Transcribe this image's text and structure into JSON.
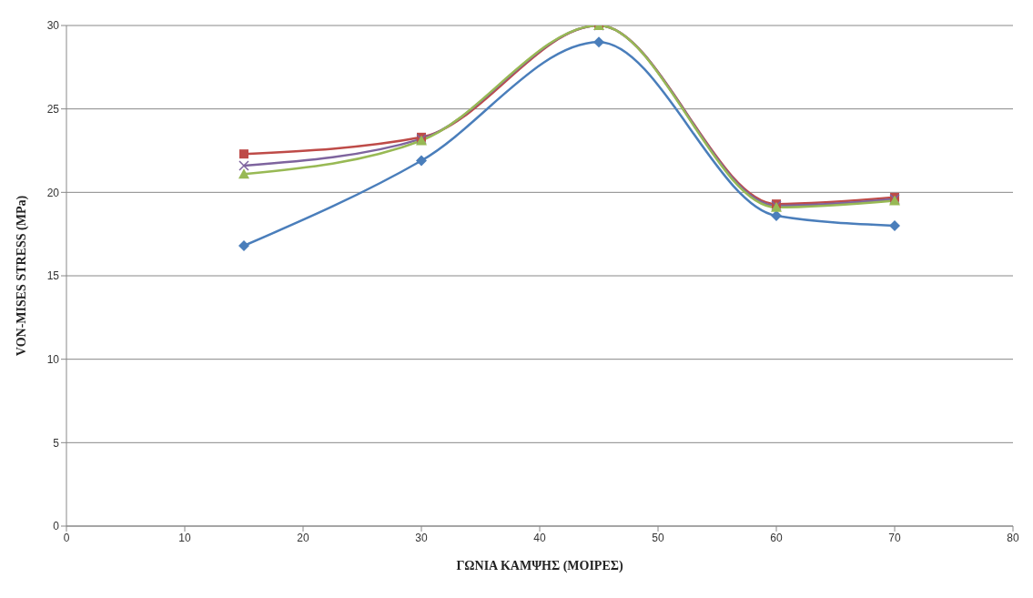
{
  "chart_data": {
    "type": "line",
    "xlabel": "ΓΩΝΙΑ ΚΑΜΨΗΣ (ΜΟΙΡΕΣ)",
    "ylabel": "VON-MISES STRESS (MPa)",
    "x": [
      15,
      30,
      45,
      60,
      70
    ],
    "xlim": [
      0,
      80
    ],
    "xticks": [
      0,
      10,
      20,
      30,
      40,
      50,
      60,
      70,
      80
    ],
    "ylim": [
      0,
      30
    ],
    "yticks": [
      0,
      5,
      10,
      15,
      20,
      25,
      30
    ],
    "grid": "y",
    "legend": false,
    "line_style": "solid",
    "series": [
      {
        "color": "#4a7ebb",
        "marker": "diamond",
        "values": [
          16.8,
          21.9,
          29.0,
          18.6,
          18.0
        ]
      },
      {
        "color": "#be4b48",
        "marker": "square",
        "values": [
          22.3,
          23.3,
          30.0,
          19.3,
          19.7
        ]
      },
      {
        "color": "#7e649e",
        "marker": "cross",
        "values": [
          21.6,
          23.2,
          30.0,
          19.2,
          19.6
        ]
      },
      {
        "color": "#98b954",
        "marker": "triangle",
        "values": [
          21.1,
          23.1,
          30.0,
          19.1,
          19.5
        ]
      }
    ]
  }
}
